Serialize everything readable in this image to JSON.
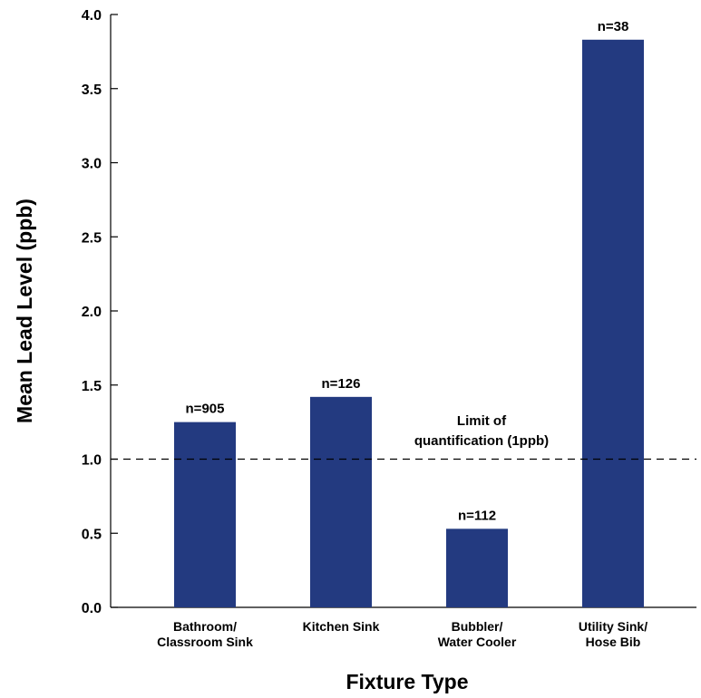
{
  "chart_data": {
    "type": "bar",
    "categories": [
      [
        "Bathroom/",
        "Classroom Sink"
      ],
      [
        "Kitchen Sink"
      ],
      [
        "Bubbler/",
        "Water Cooler"
      ],
      [
        "Utility Sink/",
        "Hose Bib"
      ]
    ],
    "values": [
      1.25,
      1.42,
      0.53,
      3.83
    ],
    "data_labels": [
      "n=905",
      "n=126",
      "n=112",
      "n=38"
    ],
    "xlabel": "Fixture Type",
    "ylabel": "Mean Lead Level (ppb)",
    "ylim": [
      0,
      4.0
    ],
    "yticks": [
      "0.0",
      "0.5",
      "1.0",
      "1.5",
      "2.0",
      "2.5",
      "3.0",
      "3.5",
      "4.0"
    ],
    "reference_line": {
      "value": 1.0,
      "style": "dashed",
      "label": [
        "Limit of",
        "quantification (1ppb)"
      ]
    },
    "bar_color": "#233a80",
    "grid": false,
    "legend": "none"
  }
}
